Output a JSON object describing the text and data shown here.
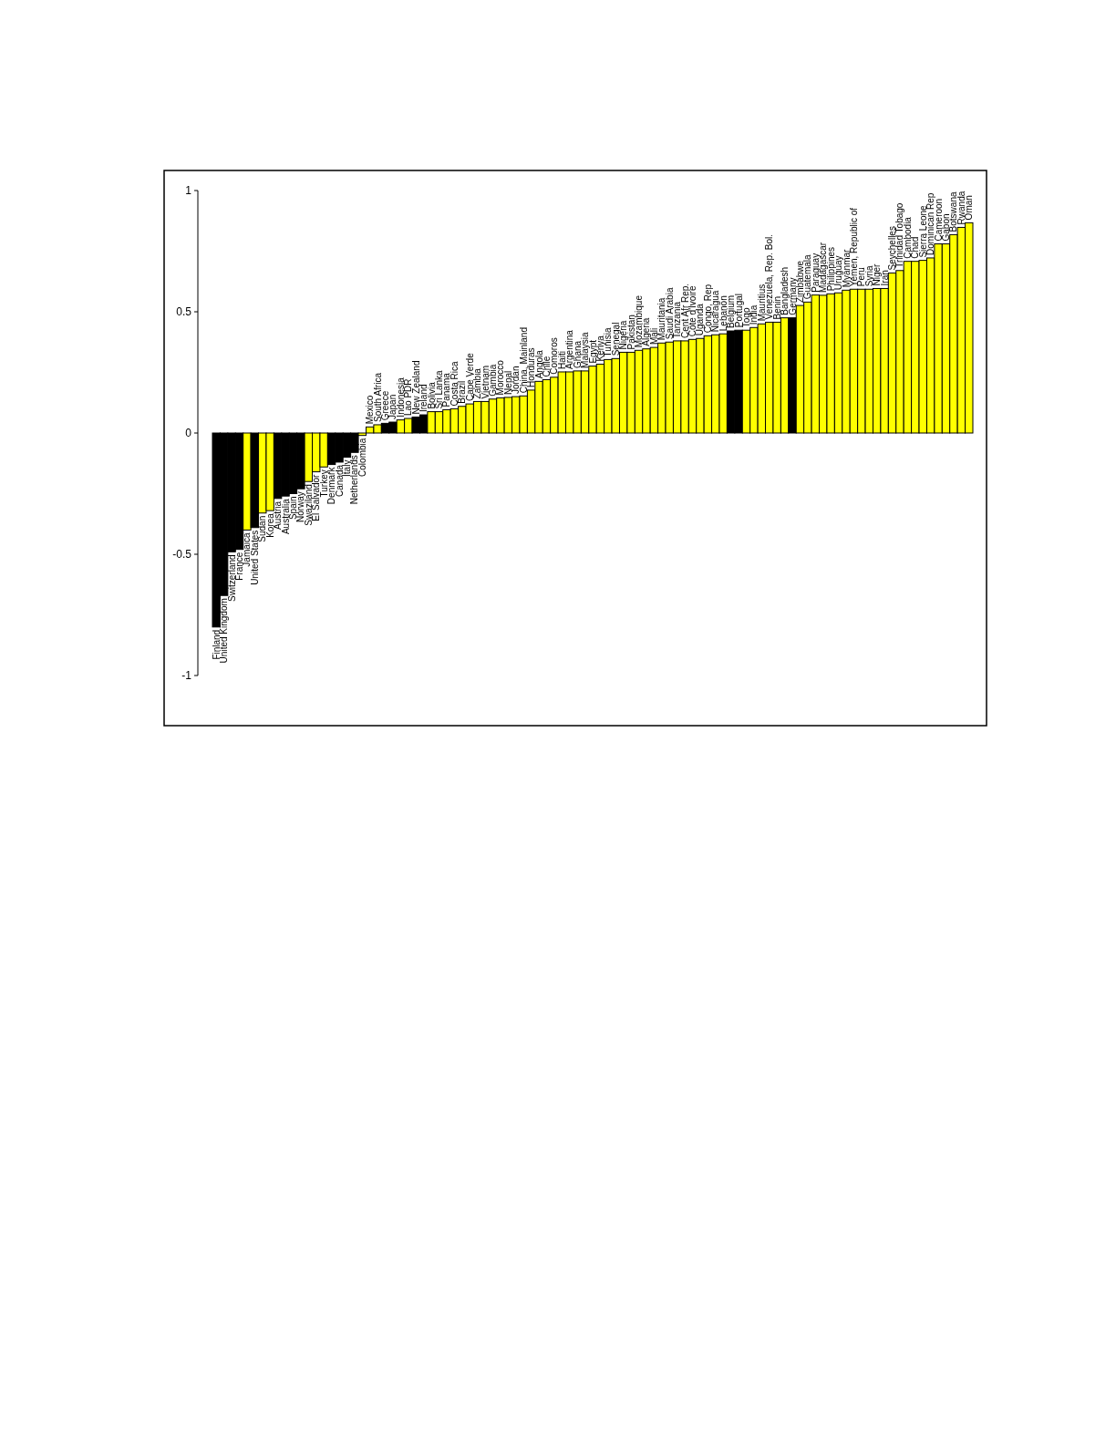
{
  "chart_data": {
    "type": "bar",
    "categories": [
      "Finland",
      "United Kingdom",
      "Switzerland",
      "France",
      "Jamaica",
      "United States",
      "Sudan",
      "Korea",
      "Austria",
      "Australia",
      "Spain",
      "Norway",
      "Swaziland",
      "El Salvador",
      "Turkey",
      "Denmark",
      "Canada",
      "Italy",
      "Netherlands",
      "Colombia",
      "Mexico",
      "South Africa",
      "Greece",
      "Japan",
      "Indonesia",
      "Lao PDR",
      "New Zealand",
      "Ireland",
      "Bolivia",
      "Sri Lanka",
      "Panama",
      "Costa Rica",
      "Brazil",
      "Cape Verde",
      "Zambia",
      "Vietnam",
      "Gambia",
      "Morocco",
      "Nepal",
      "Jordan",
      "China, Mainland",
      "Honduras",
      "Angola",
      "Chile",
      "Comoros",
      "Haiti",
      "Argentina",
      "Ghana",
      "Malaysia",
      "Egypt",
      "Kenya",
      "Tunisia",
      "Senegal",
      "Nigeria",
      "Pakistan",
      "Mozambique",
      "Algeria",
      "Mali",
      "Mauritania",
      "Saudi Arabia",
      "Tanzania",
      "Cent Afr Rep.",
      "Côte d'Ivoire",
      "Uganda",
      "Congo, Rep",
      "Nicaragua",
      "Lebanon",
      "Belgium",
      "Portugal",
      "Togo",
      "India",
      "Mauritius",
      "Venezuela, Rep. Bol.",
      "Benin",
      "Bangladesh",
      "Germany",
      "Zimbabwe",
      "Guatemala",
      "Paraguay",
      "Madagascar",
      "Philippines",
      "Uruguay",
      "Myanmar",
      "Yemen, Republic of",
      "Peru",
      "Syria",
      "Niger",
      "Iran",
      "Seychelles",
      "Trinidad Tobago",
      "Cambodia",
      "Chad",
      "Sierra Leone",
      "Dominican Rep",
      "Cameroon",
      "Gabon",
      "Botswana",
      "Rwanda",
      "Oman"
    ],
    "values": [
      -0.8,
      -0.67,
      -0.49,
      -0.48,
      -0.4,
      -0.39,
      -0.33,
      -0.32,
      -0.27,
      -0.26,
      -0.25,
      -0.23,
      -0.2,
      -0.16,
      -0.14,
      -0.13,
      -0.12,
      -0.1,
      -0.08,
      -0.01,
      0.025,
      0.034,
      0.04,
      0.045,
      0.054,
      0.06,
      0.066,
      0.075,
      0.088,
      0.088,
      0.096,
      0.1,
      0.11,
      0.12,
      0.13,
      0.13,
      0.14,
      0.145,
      0.147,
      0.15,
      0.153,
      0.177,
      0.213,
      0.22,
      0.23,
      0.252,
      0.252,
      0.256,
      0.256,
      0.276,
      0.284,
      0.303,
      0.307,
      0.333,
      0.333,
      0.341,
      0.347,
      0.353,
      0.371,
      0.375,
      0.38,
      0.38,
      0.386,
      0.39,
      0.401,
      0.405,
      0.409,
      0.421,
      0.424,
      0.424,
      0.435,
      0.45,
      0.457,
      0.457,
      0.475,
      0.475,
      0.526,
      0.54,
      0.569,
      0.568,
      0.574,
      0.578,
      0.589,
      0.593,
      0.593,
      0.593,
      0.596,
      0.596,
      0.66,
      0.67,
      0.708,
      0.708,
      0.712,
      0.722,
      0.78,
      0.78,
      0.818,
      0.848,
      0.867
    ],
    "colors": [
      "#000000",
      "#000000",
      "#000000",
      "#000000",
      "#ffff00",
      "#000000",
      "#ffff00",
      "#ffff00",
      "#000000",
      "#000000",
      "#000000",
      "#000000",
      "#ffff00",
      "#ffff00",
      "#ffff00",
      "#000000",
      "#000000",
      "#000000",
      "#000000",
      "#ffff00",
      "#ffff00",
      "#ffff00",
      "#000000",
      "#000000",
      "#ffff00",
      "#ffff00",
      "#000000",
      "#000000",
      "#ffff00",
      "#ffff00",
      "#ffff00",
      "#ffff00",
      "#ffff00",
      "#ffff00",
      "#ffff00",
      "#ffff00",
      "#ffff00",
      "#ffff00",
      "#ffff00",
      "#ffff00",
      "#ffff00",
      "#ffff00",
      "#ffff00",
      "#ffff00",
      "#ffff00",
      "#ffff00",
      "#ffff00",
      "#ffff00",
      "#ffff00",
      "#ffff00",
      "#ffff00",
      "#ffff00",
      "#ffff00",
      "#ffff00",
      "#ffff00",
      "#ffff00",
      "#ffff00",
      "#ffff00",
      "#ffff00",
      "#ffff00",
      "#ffff00",
      "#ffff00",
      "#ffff00",
      "#ffff00",
      "#ffff00",
      "#ffff00",
      "#ffff00",
      "#000000",
      "#000000",
      "#ffff00",
      "#ffff00",
      "#ffff00",
      "#ffff00",
      "#ffff00",
      "#ffff00",
      "#000000",
      "#ffff00",
      "#ffff00",
      "#ffff00",
      "#ffff00",
      "#ffff00",
      "#ffff00",
      "#ffff00",
      "#ffff00",
      "#ffff00",
      "#ffff00",
      "#ffff00",
      "#ffff00",
      "#ffff00",
      "#ffff00",
      "#ffff00",
      "#ffff00",
      "#ffff00",
      "#ffff00",
      "#ffff00",
      "#ffff00",
      "#ffff00",
      "#ffff00",
      "#ffff00"
    ],
    "ylim": [
      -1,
      1
    ],
    "yticks": [
      1,
      0.5,
      0,
      -0.5,
      -1
    ],
    "grid": false
  }
}
